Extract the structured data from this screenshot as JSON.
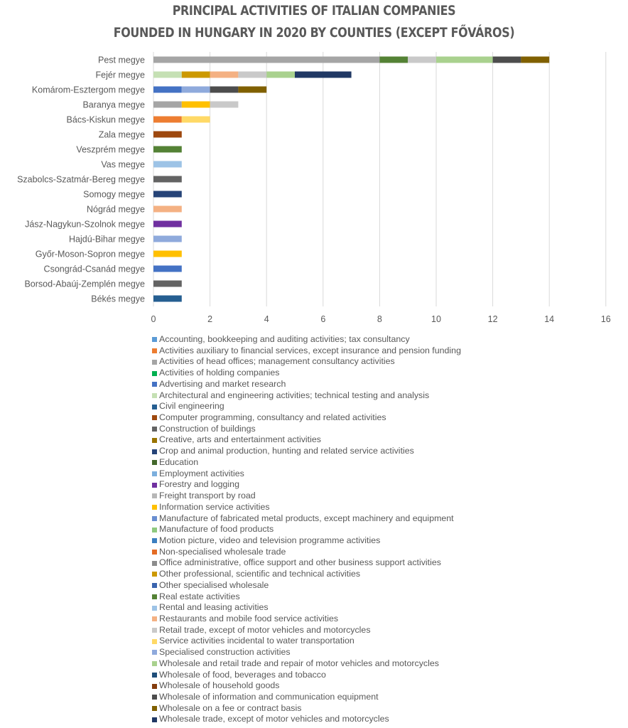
{
  "chart_data": {
    "type": "bar",
    "orientation": "horizontal",
    "stacked": true,
    "title": [
      "PRINCIPAL ACTIVITIES OF ITALIAN COMPANIES",
      "FOUNDED IN HUNGARY IN 2020 BY COUNTIES (EXCEPT FŐVÁROS)"
    ],
    "xlim": [
      0,
      16
    ],
    "xticks": [
      "0",
      "2",
      "4",
      "6",
      "8",
      "10",
      "12",
      "14",
      "16"
    ],
    "grid": true,
    "legend_position": "bottom",
    "categories": [
      "Pest megye",
      "Fejér megye",
      "Komárom-Esztergom megye",
      "Baranya megye",
      "Bács-Kiskun megye",
      "Zala megye",
      "Veszprém megye",
      "Vas megye",
      "Szabolcs-Szatmár-Bereg megye",
      "Somogy megye",
      "Nógrád megye",
      "Jász-Nagykun-Szolnok megye",
      "Hajdú-Bihar megye",
      "Győr-Moson-Sopron megye",
      "Csongrád-Csanád megye",
      "Borsod-Abaúj-Zemplén megye",
      "Békés megye"
    ],
    "series": [
      {
        "name": "Accounting, bookkeeping and auditing activities; tax consultancy",
        "color": "#5B9BD5",
        "values": [
          0,
          0,
          0,
          0,
          0,
          0,
          0,
          0,
          0,
          0,
          0,
          0,
          0,
          0,
          0,
          0,
          0
        ]
      },
      {
        "name": "Activities auxiliary to financial services, except insurance and pension funding",
        "color": "#ED7D31",
        "values": [
          0,
          0,
          0,
          0,
          1,
          0,
          0,
          0,
          0,
          0,
          0,
          0,
          0,
          0,
          0,
          0,
          0
        ]
      },
      {
        "name": "Activities of head offices; management consultancy activities",
        "color": "#A5A5A5",
        "values": [
          8,
          0,
          0,
          1,
          0,
          0,
          0,
          0,
          0,
          0,
          0,
          0,
          0,
          0,
          0,
          0,
          0
        ]
      },
      {
        "name": "Activities of holding companies",
        "color": "#00B050",
        "values": [
          0,
          0,
          0,
          0,
          0,
          0,
          0,
          0,
          0,
          0,
          0,
          0,
          0,
          0,
          0,
          0,
          0
        ]
      },
      {
        "name": "Advertising and market research",
        "color": "#4472C4",
        "values": [
          0,
          0,
          1,
          0,
          0,
          0,
          0,
          0,
          0,
          0,
          0,
          0,
          0,
          0,
          1,
          0,
          0
        ]
      },
      {
        "name": "Architectural and engineering activities; technical testing and analysis",
        "color": "#C5E0B4",
        "values": [
          0,
          1,
          0,
          0,
          0,
          0,
          0,
          0,
          0,
          0,
          0,
          0,
          0,
          0,
          0,
          0,
          0
        ]
      },
      {
        "name": "Civil engineering",
        "color": "#255E91",
        "values": [
          0,
          0,
          0,
          0,
          0,
          0,
          0,
          0,
          0,
          0,
          0,
          0,
          0,
          0,
          0,
          0,
          1
        ]
      },
      {
        "name": "Computer programming, consultancy and related activities",
        "color": "#9E480E",
        "values": [
          0,
          0,
          0,
          0,
          0,
          1,
          0,
          0,
          0,
          0,
          0,
          0,
          0,
          0,
          0,
          0,
          0
        ]
      },
      {
        "name": "Construction of buildings",
        "color": "#636363",
        "values": [
          0,
          0,
          0,
          0,
          0,
          0,
          0,
          0,
          1,
          0,
          0,
          0,
          0,
          0,
          0,
          1,
          0
        ]
      },
      {
        "name": "Creative, arts and entertainment activities",
        "color": "#997300",
        "values": [
          0,
          0,
          0,
          0,
          0,
          0,
          0,
          0,
          0,
          0,
          0,
          0,
          0,
          0,
          0,
          0,
          0
        ]
      },
      {
        "name": "Crop and animal production, hunting and related service activities",
        "color": "#264478",
        "values": [
          0,
          0,
          0,
          0,
          0,
          0,
          0,
          0,
          0,
          1,
          0,
          0,
          0,
          0,
          0,
          0,
          0
        ]
      },
      {
        "name": "Education",
        "color": "#43682B",
        "values": [
          0,
          0,
          0,
          0,
          0,
          0,
          0,
          0,
          0,
          0,
          0,
          0,
          0,
          0,
          0,
          0,
          0
        ]
      },
      {
        "name": "Employment activities",
        "color": "#7CAFDD",
        "values": [
          0,
          0,
          0,
          0,
          0,
          0,
          0,
          0,
          0,
          0,
          0,
          0,
          0,
          0,
          0,
          0,
          0
        ]
      },
      {
        "name": "Forestry and logging",
        "color": "#7030A0",
        "values": [
          0,
          0,
          0,
          0,
          0,
          0,
          0,
          0,
          0,
          0,
          0,
          1,
          0,
          0,
          0,
          0,
          0
        ]
      },
      {
        "name": "Freight transport by road",
        "color": "#B7B7B7",
        "values": [
          0,
          0,
          0,
          0,
          0,
          0,
          0,
          0,
          0,
          0,
          0,
          0,
          0,
          0,
          0,
          0,
          0
        ]
      },
      {
        "name": "Information service activities",
        "color": "#FFC000",
        "values": [
          0,
          0,
          0,
          1,
          0,
          0,
          0,
          0,
          0,
          0,
          0,
          0,
          0,
          1,
          0,
          0,
          0
        ]
      },
      {
        "name": "Manufacture of fabricated metal products, except machinery and equipment",
        "color": "#698ED0",
        "values": [
          0,
          0,
          0,
          0,
          0,
          0,
          0,
          0,
          0,
          0,
          0,
          0,
          0,
          0,
          0,
          0,
          0
        ]
      },
      {
        "name": "Manufacture of food products",
        "color": "#8FC97F",
        "values": [
          0,
          0,
          0,
          0,
          0,
          0,
          0,
          0,
          0,
          0,
          0,
          0,
          0,
          0,
          0,
          0,
          0
        ]
      },
      {
        "name": "Motion picture, video and television programme activities",
        "color": "#3C7FC0",
        "values": [
          0,
          0,
          0,
          0,
          0,
          0,
          0,
          0,
          0,
          0,
          0,
          0,
          0,
          0,
          0,
          0,
          0
        ]
      },
      {
        "name": "Non-specialised wholesale trade",
        "color": "#E46C24",
        "values": [
          0,
          0,
          0,
          0,
          0,
          0,
          0,
          0,
          0,
          0,
          0,
          0,
          0,
          0,
          0,
          0,
          0
        ]
      },
      {
        "name": "Office administrative, office support and other business support activities",
        "color": "#8C8C8C",
        "values": [
          0,
          0,
          0,
          0,
          0,
          0,
          0,
          0,
          0,
          0,
          0,
          0,
          0,
          0,
          0,
          0,
          0
        ]
      },
      {
        "name": "Other professional, scientific and technical activities",
        "color": "#CC9900",
        "values": [
          0,
          1,
          0,
          0,
          0,
          0,
          0,
          0,
          0,
          0,
          0,
          0,
          0,
          0,
          0,
          0,
          0
        ]
      },
      {
        "name": "Other specialised wholesale",
        "color": "#3A64AE",
        "values": [
          0,
          0,
          0,
          0,
          0,
          0,
          0,
          0,
          0,
          0,
          0,
          0,
          0,
          0,
          0,
          0,
          0
        ]
      },
      {
        "name": "Real estate activities",
        "color": "#548235",
        "values": [
          1,
          0,
          0,
          0,
          0,
          0,
          1,
          0,
          0,
          0,
          0,
          0,
          0,
          0,
          0,
          0,
          0
        ]
      },
      {
        "name": "Rental and leasing activities",
        "color": "#9DC3E6",
        "values": [
          0,
          0,
          0,
          0,
          0,
          0,
          0,
          1,
          0,
          0,
          0,
          0,
          0,
          0,
          0,
          0,
          0
        ]
      },
      {
        "name": "Restaurants and mobile food service activities",
        "color": "#F4B183",
        "values": [
          0,
          1,
          0,
          0,
          0,
          0,
          0,
          0,
          0,
          0,
          1,
          0,
          0,
          0,
          0,
          0,
          0
        ]
      },
      {
        "name": "Retail trade, except of motor vehicles and motorcycles",
        "color": "#C9C9C9",
        "values": [
          1,
          1,
          0,
          1,
          0,
          0,
          0,
          0,
          0,
          0,
          0,
          0,
          0,
          0,
          0,
          0,
          0
        ]
      },
      {
        "name": "Service activities incidental to water transportation",
        "color": "#FFD966",
        "values": [
          0,
          0,
          0,
          0,
          1,
          0,
          0,
          0,
          0,
          0,
          0,
          0,
          0,
          0,
          0,
          0,
          0
        ]
      },
      {
        "name": "Specialised construction activities",
        "color": "#8FAADC",
        "values": [
          0,
          0,
          1,
          0,
          0,
          0,
          0,
          0,
          0,
          0,
          0,
          0,
          1,
          0,
          0,
          0,
          0
        ]
      },
      {
        "name": "Wholesale and retail trade and repair of motor vehicles and motorcycles",
        "color": "#A9D18E",
        "values": [
          2,
          1,
          0,
          0,
          0,
          0,
          0,
          0,
          0,
          0,
          0,
          0,
          0,
          0,
          0,
          0,
          0
        ]
      },
      {
        "name": "Wholesale of food, beverages and tobacco",
        "color": "#1F4E79",
        "values": [
          0,
          0,
          0,
          0,
          0,
          0,
          0,
          0,
          0,
          0,
          0,
          0,
          0,
          0,
          0,
          0,
          0
        ]
      },
      {
        "name": "Wholesale of household goods",
        "color": "#843C0C",
        "values": [
          0,
          0,
          0,
          0,
          0,
          0,
          0,
          0,
          0,
          0,
          0,
          0,
          0,
          0,
          0,
          0,
          0
        ]
      },
      {
        "name": "Wholesale of information and communication equipment",
        "color": "#4D4D4D",
        "values": [
          1,
          0,
          1,
          0,
          0,
          0,
          0,
          0,
          0,
          0,
          0,
          0,
          0,
          0,
          0,
          0,
          0
        ]
      },
      {
        "name": "Wholesale on a fee or contract basis",
        "color": "#806000",
        "values": [
          1,
          0,
          1,
          0,
          0,
          0,
          0,
          0,
          0,
          0,
          0,
          0,
          0,
          0,
          0,
          0,
          0
        ]
      },
      {
        "name": "Wholesale trade, except of motor vehicles and motorcycles",
        "color": "#203864",
        "values": [
          0,
          2,
          0,
          0,
          0,
          0,
          0,
          0,
          0,
          0,
          0,
          0,
          0,
          0,
          0,
          0,
          0
        ]
      }
    ]
  }
}
